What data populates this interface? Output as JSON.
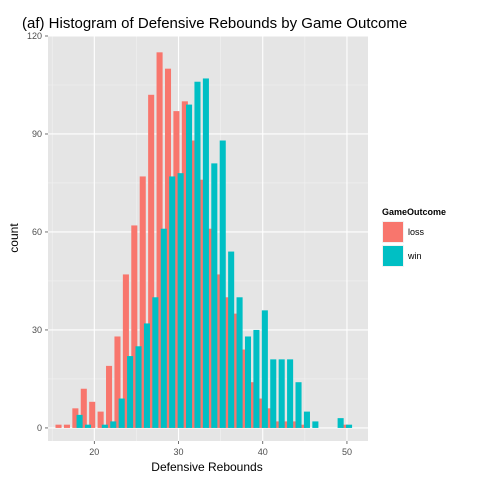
{
  "chart_data": {
    "type": "bar",
    "title": "(af) Histogram of Defensive Rebounds by Game Outcome",
    "xlabel": "Defensive Rebounds",
    "ylabel": "count",
    "xlim": [
      14.5,
      52.5
    ],
    "ylim": [
      -4,
      120
    ],
    "x_ticks": [
      20,
      30,
      40,
      50
    ],
    "y_ticks": [
      0,
      30,
      60,
      90,
      120
    ],
    "grid": true,
    "legend": {
      "title": "GameOutcome",
      "position": "right"
    },
    "x": [
      16,
      17,
      18,
      19,
      20,
      21,
      22,
      23,
      24,
      25,
      26,
      27,
      28,
      29,
      30,
      31,
      32,
      33,
      34,
      35,
      36,
      37,
      38,
      39,
      40,
      41,
      42,
      43,
      44,
      45,
      46,
      47,
      48,
      49,
      50,
      51
    ],
    "series": [
      {
        "name": "loss",
        "color": "#F8766D",
        "values": [
          1,
          1,
          6,
          12,
          8,
          5,
          19,
          28,
          47,
          62,
          77,
          102,
          115,
          110,
          97,
          100,
          88,
          76,
          61,
          47,
          40,
          35,
          24,
          14,
          9,
          6,
          2,
          2,
          2,
          1,
          0,
          0,
          0,
          0,
          1,
          0
        ]
      },
      {
        "name": "win",
        "color": "#00BFC4",
        "values": [
          0,
          0,
          4,
          1,
          0,
          1,
          2,
          9,
          22,
          25,
          32,
          40,
          61,
          77,
          78,
          99,
          106,
          107,
          81,
          88,
          54,
          40,
          28,
          30,
          36,
          21,
          21,
          21,
          14,
          5,
          2,
          0,
          0,
          3,
          1,
          0
        ]
      }
    ]
  }
}
